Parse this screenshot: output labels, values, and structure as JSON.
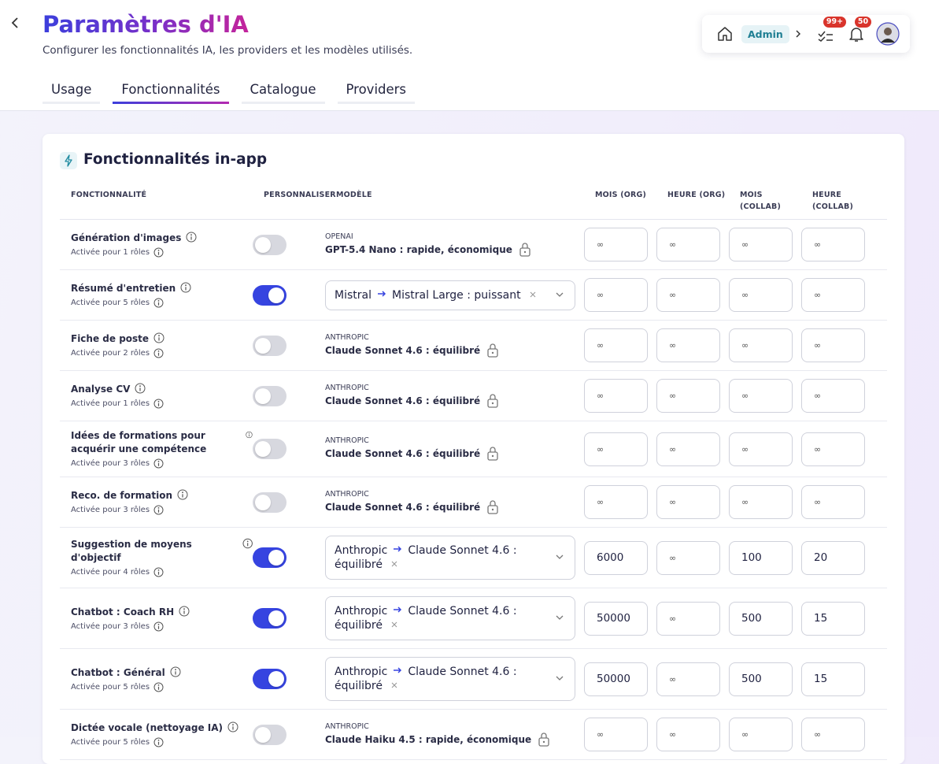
{
  "header": {
    "title": "Paramètres d'IA",
    "subtitle": "Configurer les fonctionnalités IA, les providers et les modèles utilisés.",
    "role": "Admin",
    "tasks_badge": "99+",
    "notifications_badge": "50"
  },
  "tabs": {
    "items": [
      "Usage",
      "Fonctionnalités",
      "Catalogue",
      "Providers"
    ],
    "active": 1
  },
  "section": {
    "title": "Fonctionnalités in-app",
    "columns": [
      "FONCTIONNALITÉ",
      "PERSONNALISER",
      "MODÈLE",
      "MOIS (ORG)",
      "HEURE (ORG)",
      "MOIS (COLLAB)",
      "HEURE (COLLAB)"
    ]
  },
  "rows": [
    {
      "name": "Génération d'images",
      "roles": "Activée pour 1 rôles",
      "enabled": false,
      "provider": "OPENAI",
      "model": "GPT-5.4 Nano : rapide, économique",
      "limits": [
        "∞",
        "∞",
        "∞",
        "∞"
      ]
    },
    {
      "name": "Résumé d'entretien",
      "roles": "Activée pour 5 rôles",
      "enabled": true,
      "provider": "Mistral",
      "model": "Mistral Large : puissant",
      "limits": [
        "∞",
        "∞",
        "∞",
        "∞"
      ]
    },
    {
      "name": "Fiche de poste",
      "roles": "Activée pour 2 rôles",
      "enabled": false,
      "provider": "ANTHROPIC",
      "model": "Claude Sonnet 4.6 : équilibré",
      "limits": [
        "∞",
        "∞",
        "∞",
        "∞"
      ]
    },
    {
      "name": "Analyse CV",
      "roles": "Activée pour 1 rôles",
      "enabled": false,
      "provider": "ANTHROPIC",
      "model": "Claude Sonnet 4.6 : équilibré",
      "limits": [
        "∞",
        "∞",
        "∞",
        "∞"
      ]
    },
    {
      "name": "Idées de formations pour acquérir une compétence",
      "roles": "Activée pour 3 rôles",
      "enabled": false,
      "provider": "ANTHROPIC",
      "model": "Claude Sonnet 4.6 : équilibré",
      "limits": [
        "∞",
        "∞",
        "∞",
        "∞"
      ]
    },
    {
      "name": "Reco. de formation",
      "roles": "Activée pour 3 rôles",
      "enabled": false,
      "provider": "ANTHROPIC",
      "model": "Claude Sonnet 4.6 : équilibré",
      "limits": [
        "∞",
        "∞",
        "∞",
        "∞"
      ]
    },
    {
      "name": "Suggestion de moyens d'objectif",
      "roles": "Activée pour 4 rôles",
      "enabled": true,
      "provider": "Anthropic",
      "model": "Claude Sonnet 4.6 : équilibré",
      "limits": [
        6000,
        "∞",
        100,
        20
      ]
    },
    {
      "name": "Chatbot : Coach RH",
      "roles": "Activée pour 3 rôles",
      "enabled": true,
      "provider": "Anthropic",
      "model": "Claude Sonnet 4.6 : équilibré",
      "limits": [
        50000,
        "∞",
        500,
        15
      ]
    },
    {
      "name": "Chatbot : Général",
      "roles": "Activée pour 5 rôles",
      "enabled": true,
      "provider": "Anthropic",
      "model": "Claude Sonnet 4.6 : équilibré",
      "limits": [
        50000,
        "∞",
        500,
        15
      ]
    },
    {
      "name": "Dictée vocale (nettoyage IA)",
      "roles": "Activée pour 5 rôles",
      "enabled": false,
      "provider": "ANTHROPIC",
      "model": "Claude Haiku 4.5 : rapide, économique",
      "limits": [
        "∞",
        "∞",
        "∞",
        "∞"
      ]
    }
  ]
}
